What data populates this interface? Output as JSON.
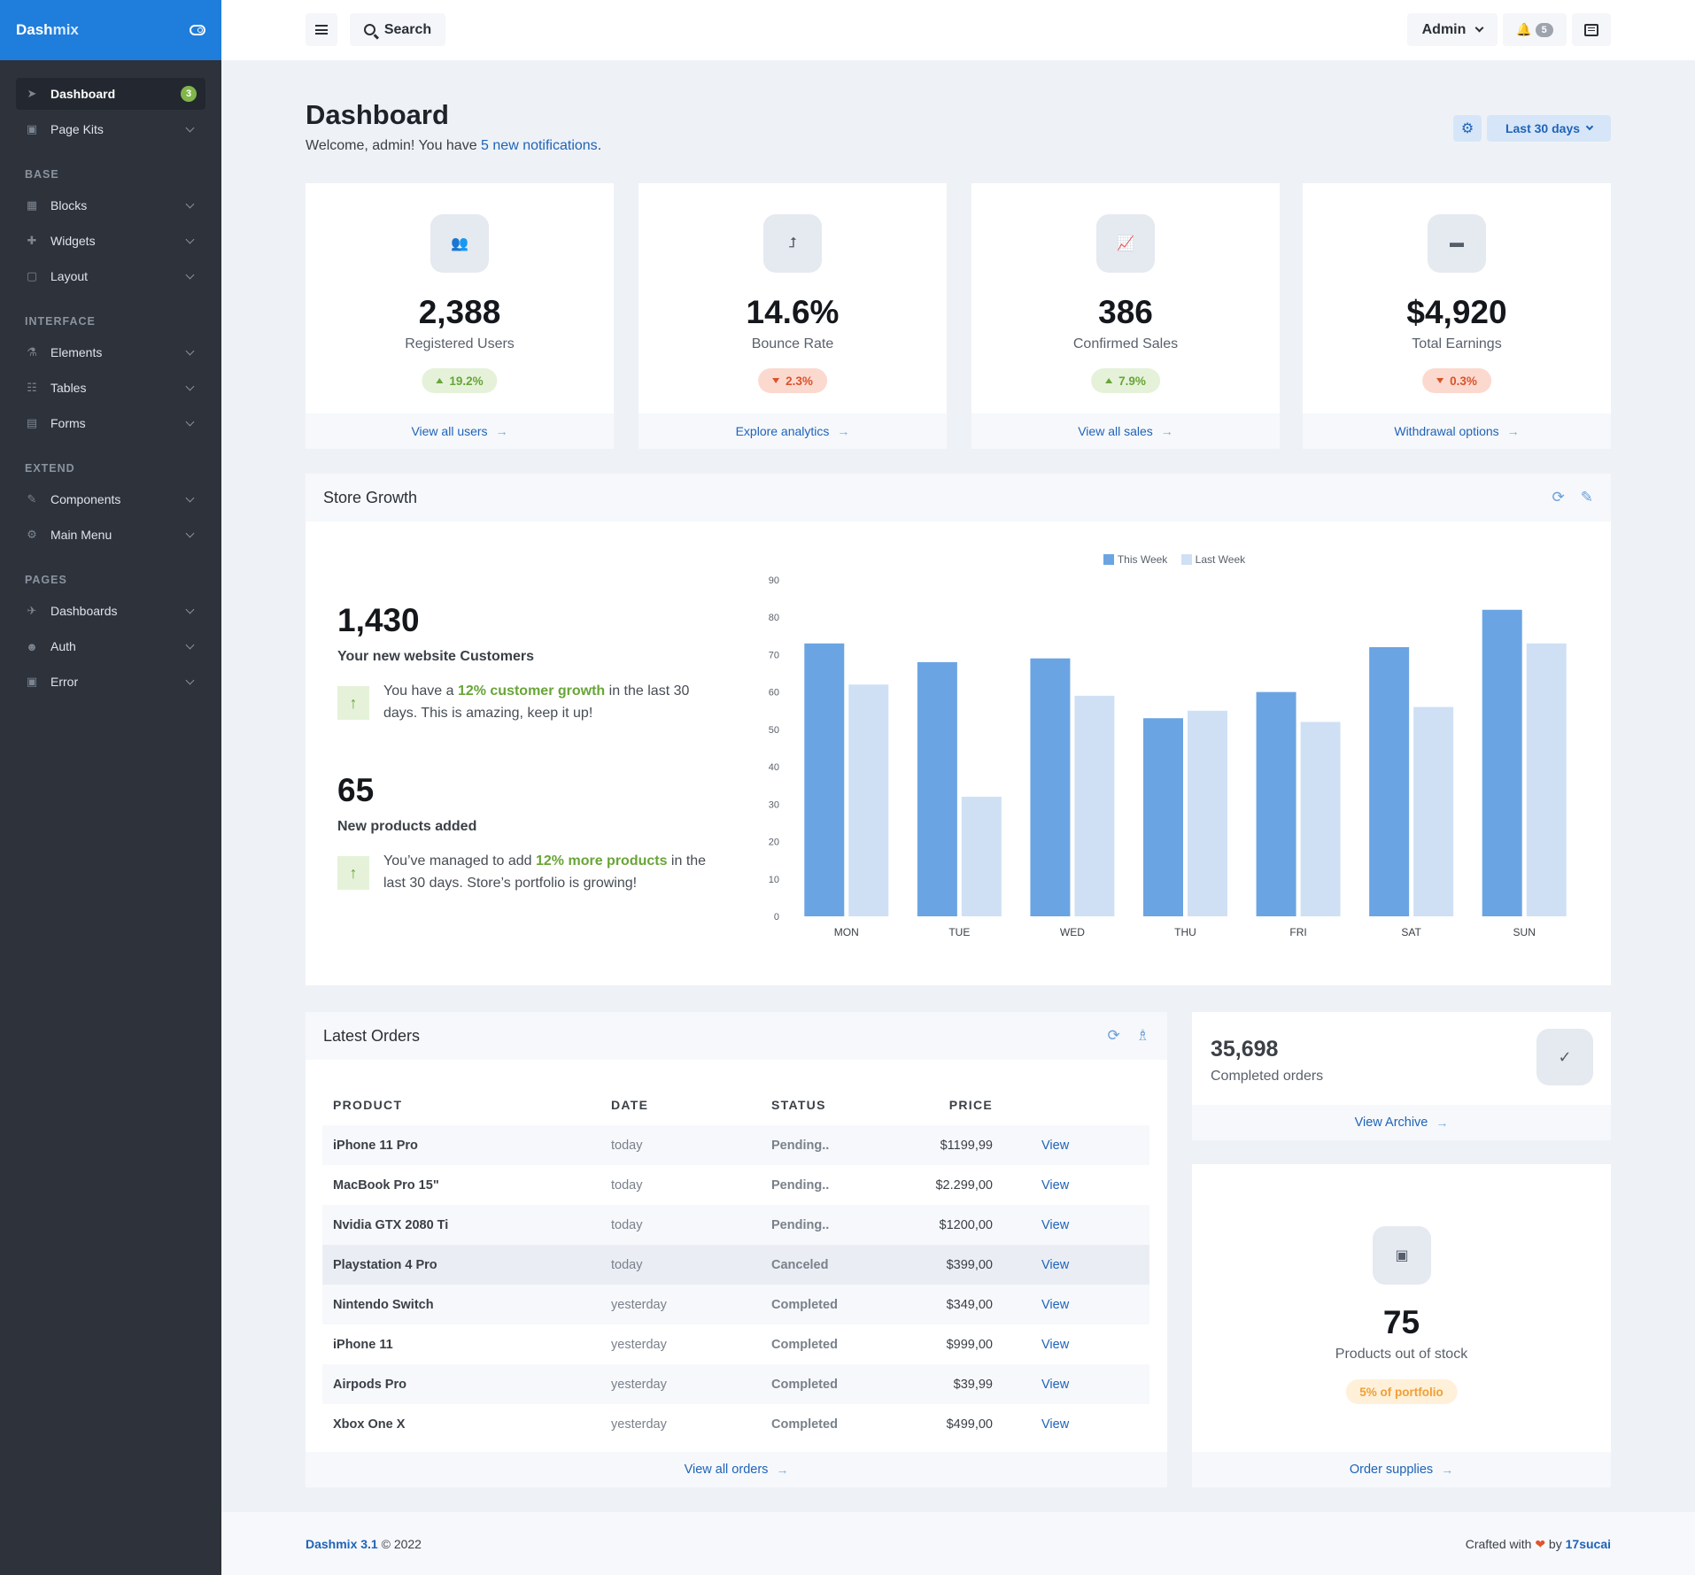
{
  "brand": {
    "name_part1": "Dash",
    "name_part2": "mix"
  },
  "sidebar": {
    "items": [
      {
        "label": "Dashboard",
        "badge": "3",
        "icon": "paper-plane-icon"
      },
      {
        "label": "Page Kits",
        "icon": "copy-icon"
      }
    ],
    "sections": [
      {
        "heading": "BASE",
        "items": [
          {
            "label": "Blocks",
            "icon": "grid-icon"
          },
          {
            "label": "Widgets",
            "icon": "puzzle-icon"
          },
          {
            "label": "Layout",
            "icon": "vector-square-icon"
          }
        ]
      },
      {
        "heading": "INTERFACE",
        "items": [
          {
            "label": "Elements",
            "icon": "flask-icon"
          },
          {
            "label": "Tables",
            "icon": "table-icon"
          },
          {
            "label": "Forms",
            "icon": "file-icon"
          }
        ]
      },
      {
        "heading": "EXTEND",
        "items": [
          {
            "label": "Components",
            "icon": "wrench-icon"
          },
          {
            "label": "Main Menu",
            "icon": "cog-icon"
          }
        ]
      },
      {
        "heading": "PAGES",
        "items": [
          {
            "label": "Dashboards",
            "icon": "rocket-icon"
          },
          {
            "label": "Auth",
            "icon": "users-icon"
          },
          {
            "label": "Error",
            "icon": "ambulance-icon"
          }
        ]
      }
    ]
  },
  "topbar": {
    "search_label": "Search",
    "user_label": "Admin",
    "notifications_count": "5"
  },
  "header": {
    "title": "Dashboard",
    "welcome_prefix": "Welcome, admin! You have ",
    "welcome_link": "5 new notifications",
    "welcome_suffix": ".",
    "range_label": "Last 30 days"
  },
  "stats": [
    {
      "value": "2,388",
      "label": "Registered Users",
      "change": "19.2%",
      "trend": "up",
      "link": "View all users",
      "icon": "users-icon"
    },
    {
      "value": "14.6%",
      "label": "Bounce Rate",
      "change": "2.3%",
      "trend": "down",
      "link": "Explore analytics",
      "icon": "level-up-icon"
    },
    {
      "value": "386",
      "label": "Confirmed Sales",
      "change": "7.9%",
      "trend": "up",
      "link": "View all sales",
      "icon": "chart-line-icon"
    },
    {
      "value": "$4,920",
      "label": "Total Earnings",
      "change": "0.3%",
      "trend": "down",
      "link": "Withdrawal options",
      "icon": "wallet-icon"
    }
  ],
  "growth": {
    "title": "Store Growth",
    "customers_value": "1,430",
    "customers_label": "Your new website Customers",
    "customers_text_prefix": "You have a ",
    "customers_text_hl": "12% customer growth",
    "customers_text_suffix": " in the last 30 days. This is amazing, keep it up!",
    "products_value": "65",
    "products_label": "New products added",
    "products_text_prefix": "You’ve managed to add ",
    "products_text_hl": "12% more products",
    "products_text_suffix": " in the last 30 days. Store’s portfolio is growing!"
  },
  "chart_data": {
    "type": "bar",
    "categories": [
      "MON",
      "TUE",
      "WED",
      "THU",
      "FRI",
      "SAT",
      "SUN"
    ],
    "series": [
      {
        "name": "This Week",
        "values": [
          73,
          68,
          69,
          53,
          60,
          72,
          82
        ],
        "color": "#6ba4e3"
      },
      {
        "name": "Last Week",
        "values": [
          62,
          32,
          59,
          55,
          52,
          56,
          73
        ],
        "color": "#cfe0f5"
      }
    ],
    "ylim": [
      0,
      90
    ],
    "yticks": [
      0,
      10,
      20,
      30,
      40,
      50,
      60,
      70,
      80,
      90
    ],
    "legend": "top-center"
  },
  "orders": {
    "title": "Latest Orders",
    "columns": [
      "PRODUCT",
      "DATE",
      "STATUS",
      "PRICE"
    ],
    "rows": [
      {
        "product": "iPhone 11 Pro",
        "date": "today",
        "status": "Pending..",
        "status_type": "pending",
        "price": "$1199,99",
        "action": "View"
      },
      {
        "product": "MacBook Pro 15\"",
        "date": "today",
        "status": "Pending..",
        "status_type": "pending",
        "price": "$2.299,00",
        "action": "View"
      },
      {
        "product": "Nvidia GTX 2080 Ti",
        "date": "today",
        "status": "Pending..",
        "status_type": "pending",
        "price": "$1200,00",
        "action": "View"
      },
      {
        "product": "Playstation 4 Pro",
        "date": "today",
        "status": "Canceled",
        "status_type": "canceled",
        "price": "$399,00",
        "action": "View"
      },
      {
        "product": "Nintendo Switch",
        "date": "yesterday",
        "status": "Completed",
        "status_type": "completed",
        "price": "$349,00",
        "action": "View"
      },
      {
        "product": "iPhone 11",
        "date": "yesterday",
        "status": "Completed",
        "status_type": "completed",
        "price": "$999,00",
        "action": "View"
      },
      {
        "product": "Airpods Pro",
        "date": "yesterday",
        "status": "Completed",
        "status_type": "completed",
        "price": "$39,99",
        "action": "View"
      },
      {
        "product": "Xbox One X",
        "date": "yesterday",
        "status": "Completed",
        "status_type": "completed",
        "price": "$499,00",
        "action": "View"
      }
    ],
    "footer_link": "View all orders"
  },
  "completed_card": {
    "value": "35,698",
    "label": "Completed orders",
    "link": "View Archive"
  },
  "stock_card": {
    "value": "75",
    "label": "Products out of stock",
    "pill": "5% of portfolio",
    "link": "Order supplies"
  },
  "footer": {
    "product": "Dashmix 3.1",
    "copyright": " © 2022",
    "crafted_prefix": "Crafted with ",
    "crafted_by": " by ",
    "author": "17sucai"
  }
}
